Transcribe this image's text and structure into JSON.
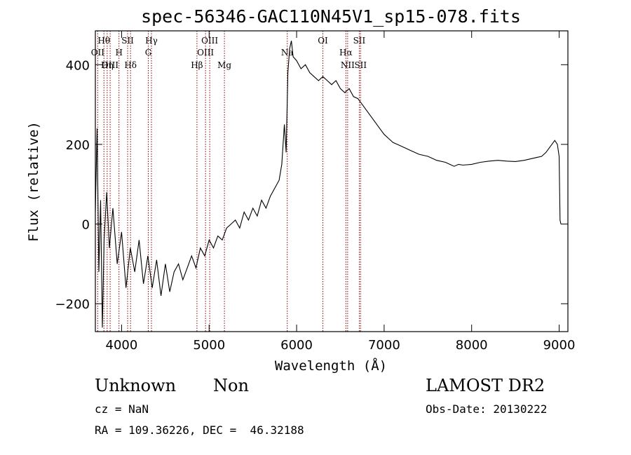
{
  "chart_data": {
    "type": "line",
    "title": "spec-56346-GAC110N45V1_sp15-078.fits",
    "xlabel": "Wavelength (Å)",
    "ylabel": "Flux (relative)",
    "xlim": [
      3700,
      9100
    ],
    "ylim": [
      -270,
      485
    ],
    "xticks": [
      4000,
      5000,
      6000,
      7000,
      8000,
      9000
    ],
    "yticks": [
      -200,
      0,
      200,
      400
    ],
    "xtick_labels": [
      "4000",
      "5000",
      "6000",
      "7000",
      "8000",
      "9000"
    ],
    "ytick_labels": [
      "−200",
      "0",
      "200",
      "400"
    ],
    "grid": false,
    "line_color": "#000000",
    "marker_color": "#8b0000",
    "series": [
      {
        "points": [
          [
            3700,
            30
          ],
          [
            3720,
            240
          ],
          [
            3740,
            -120
          ],
          [
            3760,
            60
          ],
          [
            3780,
            -260
          ],
          [
            3800,
            -40
          ],
          [
            3830,
            80
          ],
          [
            3860,
            -60
          ],
          [
            3900,
            40
          ],
          [
            3950,
            -100
          ],
          [
            4000,
            -20
          ],
          [
            4050,
            -160
          ],
          [
            4100,
            -60
          ],
          [
            4150,
            -120
          ],
          [
            4200,
            -40
          ],
          [
            4250,
            -150
          ],
          [
            4300,
            -80
          ],
          [
            4350,
            -160
          ],
          [
            4400,
            -90
          ],
          [
            4450,
            -180
          ],
          [
            4500,
            -100
          ],
          [
            4550,
            -170
          ],
          [
            4600,
            -120
          ],
          [
            4650,
            -100
          ],
          [
            4700,
            -140
          ],
          [
            4750,
            -110
          ],
          [
            4800,
            -80
          ],
          [
            4850,
            -110
          ],
          [
            4900,
            -60
          ],
          [
            4950,
            -80
          ],
          [
            5000,
            -40
          ],
          [
            5050,
            -60
          ],
          [
            5100,
            -30
          ],
          [
            5150,
            -40
          ],
          [
            5200,
            -10
          ],
          [
            5250,
            0
          ],
          [
            5300,
            10
          ],
          [
            5350,
            -10
          ],
          [
            5400,
            30
          ],
          [
            5450,
            10
          ],
          [
            5500,
            40
          ],
          [
            5550,
            20
          ],
          [
            5600,
            60
          ],
          [
            5650,
            40
          ],
          [
            5700,
            70
          ],
          [
            5750,
            90
          ],
          [
            5800,
            110
          ],
          [
            5830,
            150
          ],
          [
            5860,
            250
          ],
          [
            5880,
            180
          ],
          [
            5900,
            380
          ],
          [
            5920,
            440
          ],
          [
            5940,
            460
          ],
          [
            5960,
            420
          ],
          [
            6000,
            410
          ],
          [
            6050,
            390
          ],
          [
            6100,
            400
          ],
          [
            6150,
            380
          ],
          [
            6200,
            370
          ],
          [
            6250,
            360
          ],
          [
            6300,
            370
          ],
          [
            6350,
            360
          ],
          [
            6400,
            350
          ],
          [
            6450,
            360
          ],
          [
            6500,
            340
          ],
          [
            6550,
            330
          ],
          [
            6600,
            340
          ],
          [
            6650,
            320
          ],
          [
            6700,
            315
          ],
          [
            6750,
            300
          ],
          [
            6800,
            285
          ],
          [
            6850,
            270
          ],
          [
            6900,
            255
          ],
          [
            6950,
            240
          ],
          [
            7000,
            225
          ],
          [
            7050,
            215
          ],
          [
            7100,
            205
          ],
          [
            7150,
            200
          ],
          [
            7200,
            195
          ],
          [
            7300,
            185
          ],
          [
            7400,
            175
          ],
          [
            7500,
            170
          ],
          [
            7600,
            160
          ],
          [
            7700,
            155
          ],
          [
            7750,
            150
          ],
          [
            7800,
            145
          ],
          [
            7850,
            150
          ],
          [
            7900,
            148
          ],
          [
            8000,
            150
          ],
          [
            8100,
            155
          ],
          [
            8200,
            158
          ],
          [
            8300,
            160
          ],
          [
            8400,
            158
          ],
          [
            8500,
            157
          ],
          [
            8600,
            160
          ],
          [
            8700,
            165
          ],
          [
            8800,
            170
          ],
          [
            8850,
            180
          ],
          [
            8900,
            195
          ],
          [
            8950,
            210
          ],
          [
            8980,
            200
          ],
          [
            9000,
            170
          ],
          [
            9010,
            10
          ],
          [
            9020,
            0
          ]
        ]
      }
    ],
    "lines": [
      {
        "name": "Hθ",
        "x": 3798,
        "row": 0
      },
      {
        "name": "OII",
        "x": 3727,
        "row": 1
      },
      {
        "name": "OIII",
        "x": 3869,
        "row": 2
      },
      {
        "name": "Hη",
        "x": 3835,
        "row": 2
      },
      {
        "name": "SII",
        "x": 4069,
        "row": 0
      },
      {
        "name": "H",
        "x": 3970,
        "row": 1
      },
      {
        "name": "Hδ",
        "x": 4102,
        "row": 2
      },
      {
        "name": "Hγ",
        "x": 4341,
        "row": 0
      },
      {
        "name": "G",
        "x": 4305,
        "row": 1
      },
      {
        "name": "OIII",
        "x": 5007,
        "row": 0
      },
      {
        "name": "OIII",
        "x": 4959,
        "row": 1
      },
      {
        "name": "Hβ",
        "x": 4861,
        "row": 2
      },
      {
        "name": "Mg",
        "x": 5175,
        "row": 2
      },
      {
        "name": "Na",
        "x": 5893,
        "row": 1
      },
      {
        "name": "OI",
        "x": 6300,
        "row": 0
      },
      {
        "name": "SII",
        "x": 6716,
        "row": 0
      },
      {
        "name": "Hα",
        "x": 6563,
        "row": 1
      },
      {
        "name": "NII",
        "x": 6583,
        "row": 2
      },
      {
        "name": "SII",
        "x": 6731,
        "row": 2
      }
    ]
  },
  "info": {
    "class": "Unknown",
    "subclass": "Non",
    "survey": "LAMOST DR2",
    "cz": "cz = NaN",
    "obs_date": "Obs-Date: 20130222",
    "radec": "RA = 109.36226, DEC =  46.32188"
  }
}
